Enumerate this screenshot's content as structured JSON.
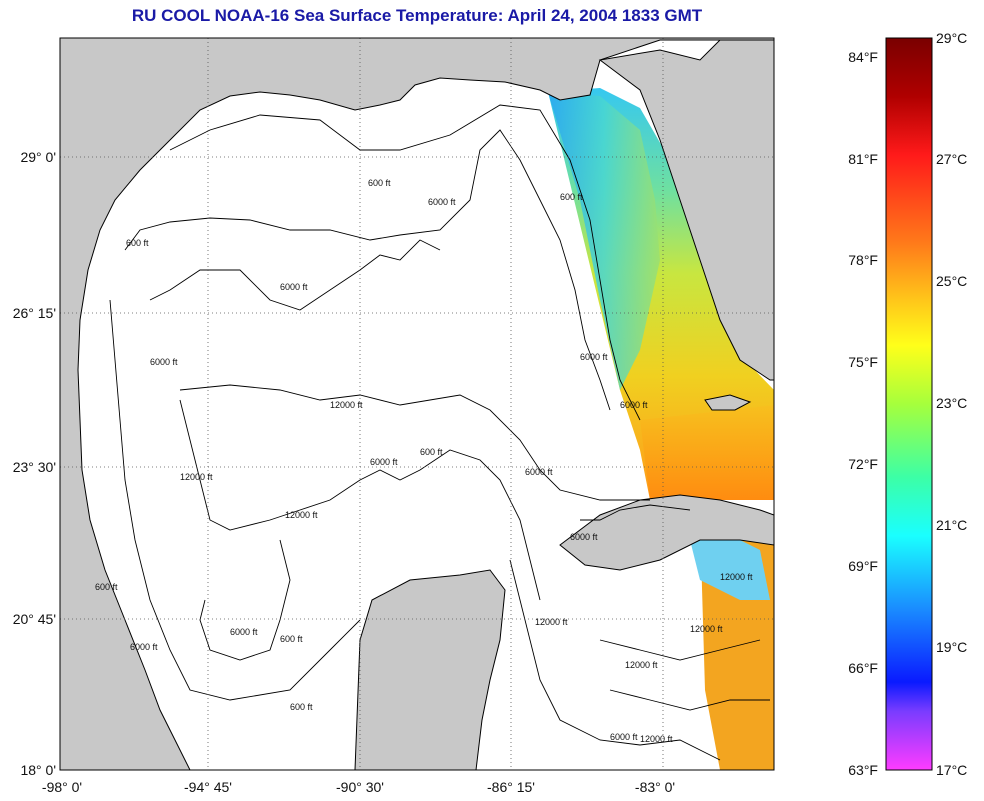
{
  "title": "RU COOL  NOAA-16  Sea Surface Temperature:  April 24, 2004 1833 GMT",
  "map": {
    "lat_ticks": [
      "29° 0'",
      "26° 15'",
      "23° 30'",
      "20° 45'",
      "18° 0'"
    ],
    "lon_ticks": [
      "-98° 0'",
      "-94° 45'",
      "-90° 30'",
      "-86° 15'",
      "-83° 0'"
    ],
    "contour_labels": [
      "600 ft",
      "6000 ft",
      "12000 ft"
    ],
    "colors": {
      "land": "#c8c8c8",
      "water": "#ffffff",
      "frame": "#000000"
    }
  },
  "colorbar": {
    "f_labels": [
      "84°F",
      "81°F",
      "78°F",
      "75°F",
      "72°F",
      "69°F",
      "66°F",
      "63°F"
    ],
    "c_labels": [
      "29°C",
      "27°C",
      "25°C",
      "23°C",
      "21°C",
      "19°C",
      "17°C"
    ]
  }
}
